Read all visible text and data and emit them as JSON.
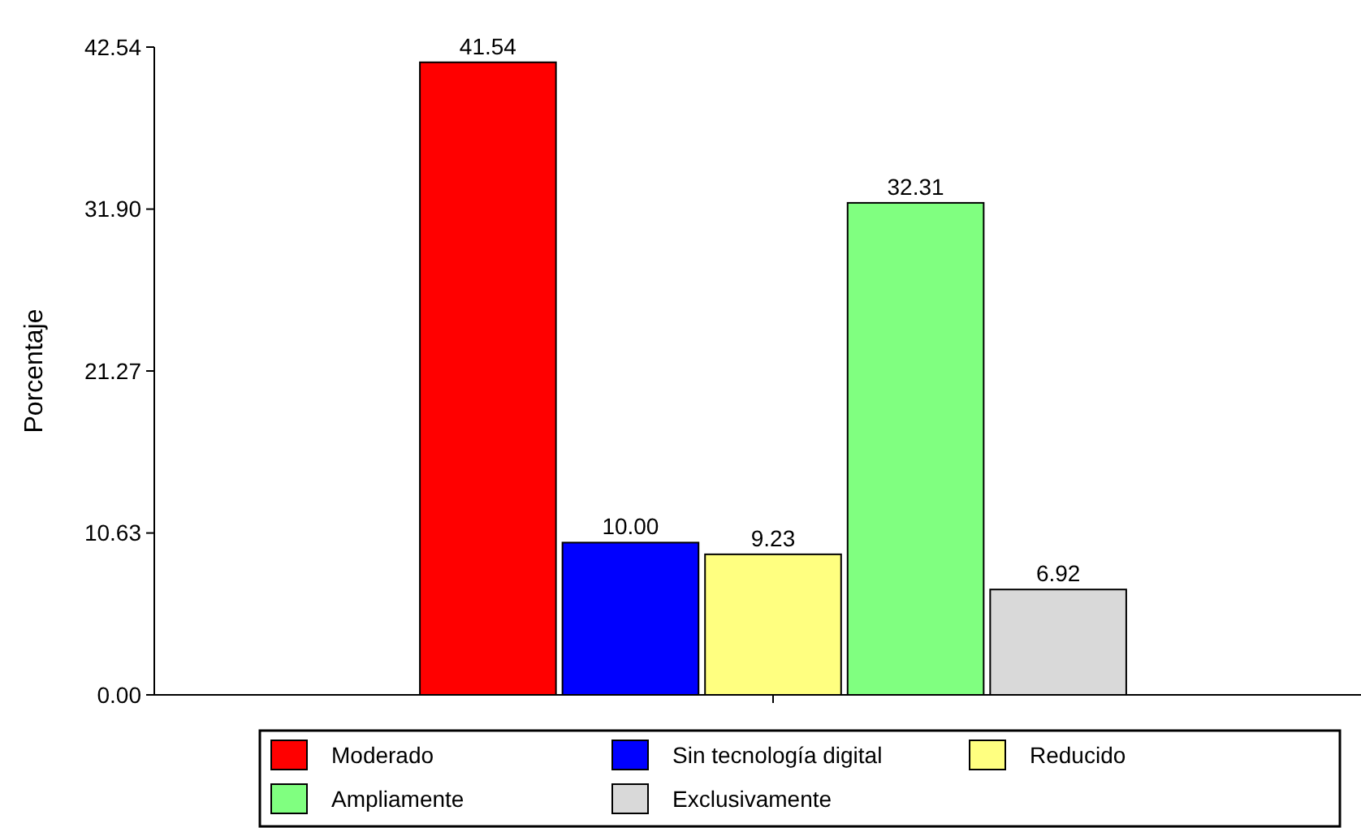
{
  "chart_data": {
    "type": "bar",
    "ylabel": "Porcentaje",
    "categories": [
      null
    ],
    "series": [
      {
        "name": "Moderado",
        "color": "#ff0000",
        "values": [
          41.54
        ],
        "value_labels": [
          "41.54"
        ]
      },
      {
        "name": "Sin tecnología digital",
        "color": "#0000ff",
        "values": [
          10.0
        ],
        "value_labels": [
          "10.00"
        ]
      },
      {
        "name": "Reducido",
        "color": "#ffff80",
        "values": [
          9.23
        ],
        "value_labels": [
          "9.23"
        ]
      },
      {
        "name": "Ampliamente",
        "color": "#80ff80",
        "values": [
          32.31
        ],
        "value_labels": [
          "32.31"
        ]
      },
      {
        "name": "Exclusivamente",
        "color": "#d9d9d9",
        "values": [
          6.92
        ],
        "value_labels": [
          "6.92"
        ]
      }
    ],
    "ylim": [
      0,
      42.54
    ],
    "yticks": [
      {
        "value": 0,
        "label": "0.00"
      },
      10.63,
      21.27,
      {
        "value": 31.9,
        "label": "31.90"
      },
      42.54
    ],
    "grid": false,
    "legend": "bottom"
  }
}
